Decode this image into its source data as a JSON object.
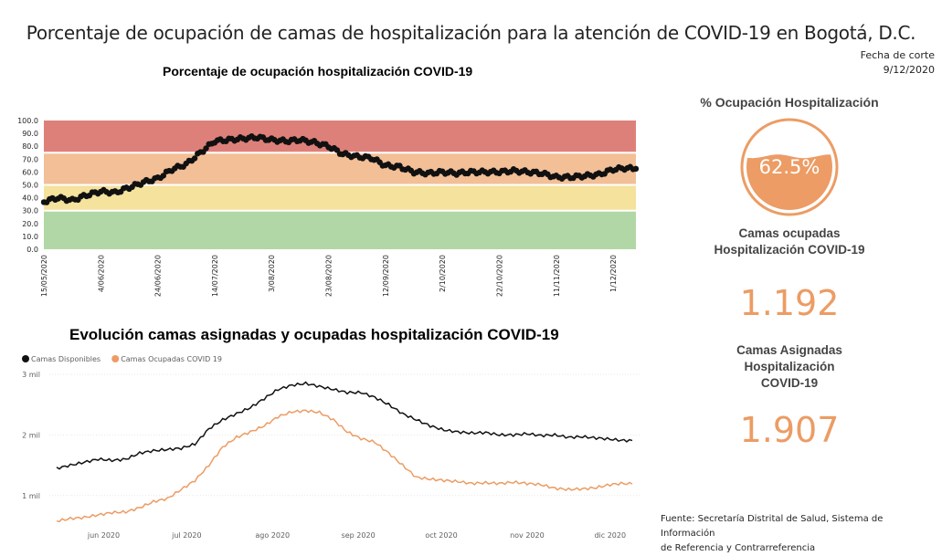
{
  "header": {
    "title": "Porcentaje de ocupación de camas de hospitalización para la atención de COVID-19 en Bogotá, D.C.",
    "cutoff_label": "Fecha de corte",
    "cutoff_date": "9/12/2020"
  },
  "kpis": {
    "occupancy_title": "% Ocupación Hospitalización",
    "occupancy_value": "62.5%",
    "occupied_label_1": "Camas ocupadas",
    "occupied_label_2": "Hospitalización COVID-19",
    "occupied_value": "1.192",
    "assigned_label_1": "Camas Asignadas",
    "assigned_label_2": "Hospitalización",
    "assigned_label_3": "COVID-19",
    "assigned_value": "1.907",
    "accent_color": "#ec9c64"
  },
  "source": {
    "line1": "Fuente: Secretaría Distrital de Salud, Sistema de Información",
    "line2": "de Referencia y Contrarreferencia"
  },
  "colors": {
    "band_red": "#de807a",
    "band_orange": "#f2bf97",
    "band_yellow": "#f4e29d",
    "band_green": "#b1d7a6",
    "available": "#111111",
    "occupied": "#ec9c64"
  },
  "chart_data": [
    {
      "type": "scatter",
      "title": "Porcentaje de ocupación hospitalización COVID-19",
      "ylim": [
        0,
        100
      ],
      "y_ticks": [
        "100.0",
        "90.0",
        "80.0",
        "70.0",
        "60.0",
        "50.0",
        "40.0",
        "30.0",
        "20.0",
        "10.0",
        "0.0"
      ],
      "x_ticks": [
        "15/05/2020",
        "4/06/2020",
        "24/06/2020",
        "14/07/2020",
        "3/08/2020",
        "23/08/2020",
        "12/09/2020",
        "2/10/2020",
        "22/10/2020",
        "11/11/2020",
        "1/12/2020"
      ],
      "x_start": "15/05/2020",
      "x_end": "9/12/2020",
      "bands": [
        {
          "from": 0,
          "to": 30,
          "color": "#b1d7a6"
        },
        {
          "from": 30,
          "to": 50,
          "color": "#f4e29d"
        },
        {
          "from": 50,
          "to": 75,
          "color": "#f2bf97"
        },
        {
          "from": 75,
          "to": 100,
          "color": "#de807a"
        }
      ],
      "series": [
        {
          "points": [
            [
              "15/05/2020",
              37
            ],
            [
              "20/05/2020",
              40
            ],
            [
              "25/05/2020",
              38
            ],
            [
              "30/05/2020",
              42
            ],
            [
              "4/06/2020",
              45
            ],
            [
              "9/06/2020",
              44
            ],
            [
              "14/06/2020",
              48
            ],
            [
              "19/06/2020",
              52
            ],
            [
              "24/06/2020",
              55
            ],
            [
              "29/06/2020",
              62
            ],
            [
              "4/07/2020",
              66
            ],
            [
              "9/07/2020",
              75
            ],
            [
              "14/07/2020",
              84
            ],
            [
              "19/07/2020",
              85
            ],
            [
              "24/07/2020",
              86
            ],
            [
              "29/07/2020",
              87
            ],
            [
              "3/08/2020",
              85
            ],
            [
              "8/08/2020",
              84
            ],
            [
              "13/08/2020",
              85
            ],
            [
              "18/08/2020",
              83
            ],
            [
              "23/08/2020",
              80
            ],
            [
              "28/08/2020",
              74
            ],
            [
              "2/09/2020",
              72
            ],
            [
              "7/09/2020",
              71
            ],
            [
              "12/09/2020",
              65
            ],
            [
              "17/09/2020",
              64
            ],
            [
              "22/09/2020",
              60
            ],
            [
              "27/09/2020",
              59
            ],
            [
              "2/10/2020",
              60
            ],
            [
              "7/10/2020",
              59
            ],
            [
              "12/10/2020",
              60
            ],
            [
              "17/10/2020",
              60
            ],
            [
              "22/10/2020",
              60
            ],
            [
              "27/10/2020",
              61
            ],
            [
              "1/11/2020",
              60
            ],
            [
              "6/11/2020",
              59
            ],
            [
              "11/11/2020",
              56
            ],
            [
              "16/11/2020",
              56
            ],
            [
              "21/11/2020",
              57
            ],
            [
              "26/11/2020",
              58
            ],
            [
              "1/12/2020",
              62
            ],
            [
              "5/12/2020",
              63
            ],
            [
              "9/12/2020",
              62.5
            ]
          ]
        }
      ]
    },
    {
      "type": "line",
      "title": "Evolución camas asignadas y ocupadas hospitalización COVID-19",
      "y_ticks": [
        "3 mil",
        "2 mil",
        "1 mil"
      ],
      "y_tick_values": [
        3000,
        2000,
        1000
      ],
      "ylim": [
        500,
        3000
      ],
      "x_ticks": [
        "jun 2020",
        "jul 2020",
        "ago 2020",
        "sep 2020",
        "oct 2020",
        "nov 2020",
        "dic 2020"
      ],
      "x_start": "15/05/2020",
      "x_end": "9/12/2020",
      "legend_position": "top-left",
      "series": [
        {
          "name": "Camas Disponibles",
          "color": "#111111",
          "points": [
            [
              "15/05/2020",
              1450
            ],
            [
              "20/05/2020",
              1500
            ],
            [
              "25/05/2020",
              1550
            ],
            [
              "30/05/2020",
              1600
            ],
            [
              "4/06/2020",
              1580
            ],
            [
              "9/06/2020",
              1600
            ],
            [
              "14/06/2020",
              1700
            ],
            [
              "19/06/2020",
              1740
            ],
            [
              "24/06/2020",
              1760
            ],
            [
              "29/06/2020",
              1780
            ],
            [
              "4/07/2020",
              1850
            ],
            [
              "9/07/2020",
              2100
            ],
            [
              "14/07/2020",
              2250
            ],
            [
              "19/07/2020",
              2350
            ],
            [
              "24/07/2020",
              2450
            ],
            [
              "29/07/2020",
              2600
            ],
            [
              "3/08/2020",
              2750
            ],
            [
              "8/08/2020",
              2820
            ],
            [
              "13/08/2020",
              2850
            ],
            [
              "18/08/2020",
              2800
            ],
            [
              "23/08/2020",
              2750
            ],
            [
              "28/08/2020",
              2700
            ],
            [
              "2/09/2020",
              2700
            ],
            [
              "7/09/2020",
              2620
            ],
            [
              "12/09/2020",
              2500
            ],
            [
              "17/09/2020",
              2350
            ],
            [
              "22/09/2020",
              2250
            ],
            [
              "27/09/2020",
              2150
            ],
            [
              "2/10/2020",
              2080
            ],
            [
              "7/10/2020",
              2050
            ],
            [
              "12/10/2020",
              2030
            ],
            [
              "17/10/2020",
              2040
            ],
            [
              "22/10/2020",
              2000
            ],
            [
              "27/10/2020",
              2000
            ],
            [
              "1/11/2020",
              2020
            ],
            [
              "6/11/2020",
              1990
            ],
            [
              "11/11/2020",
              2000
            ],
            [
              "16/11/2020",
              1960
            ],
            [
              "21/11/2020",
              1970
            ],
            [
              "26/11/2020",
              1950
            ],
            [
              "1/12/2020",
              1930
            ],
            [
              "5/12/2020",
              1910
            ],
            [
              "9/12/2020",
              1907
            ]
          ]
        },
        {
          "name": "Camas Ocupadas COVID 19",
          "color": "#ec9c64",
          "points": [
            [
              "15/05/2020",
              580
            ],
            [
              "20/05/2020",
              620
            ],
            [
              "25/05/2020",
              640
            ],
            [
              "30/05/2020",
              680
            ],
            [
              "4/06/2020",
              720
            ],
            [
              "9/06/2020",
              730
            ],
            [
              "14/06/2020",
              800
            ],
            [
              "19/06/2020",
              900
            ],
            [
              "24/06/2020",
              950
            ],
            [
              "29/06/2020",
              1100
            ],
            [
              "4/07/2020",
              1250
            ],
            [
              "9/07/2020",
              1500
            ],
            [
              "14/07/2020",
              1800
            ],
            [
              "19/07/2020",
              1960
            ],
            [
              "24/07/2020",
              2050
            ],
            [
              "29/07/2020",
              2150
            ],
            [
              "3/08/2020",
              2300
            ],
            [
              "8/08/2020",
              2380
            ],
            [
              "13/08/2020",
              2400
            ],
            [
              "18/08/2020",
              2370
            ],
            [
              "23/08/2020",
              2250
            ],
            [
              "28/08/2020",
              2050
            ],
            [
              "2/09/2020",
              1940
            ],
            [
              "7/09/2020",
              1880
            ],
            [
              "12/09/2020",
              1700
            ],
            [
              "17/09/2020",
              1500
            ],
            [
              "22/09/2020",
              1300
            ],
            [
              "27/09/2020",
              1270
            ],
            [
              "2/10/2020",
              1250
            ],
            [
              "7/10/2020",
              1230
            ],
            [
              "12/10/2020",
              1200
            ],
            [
              "17/10/2020",
              1210
            ],
            [
              "22/10/2020",
              1200
            ],
            [
              "27/10/2020",
              1220
            ],
            [
              "1/11/2020",
              1200
            ],
            [
              "6/11/2020",
              1180
            ],
            [
              "11/11/2020",
              1120
            ],
            [
              "16/11/2020",
              1100
            ],
            [
              "21/11/2020",
              1110
            ],
            [
              "26/11/2020",
              1130
            ],
            [
              "1/12/2020",
              1180
            ],
            [
              "5/12/2020",
              1200
            ],
            [
              "9/12/2020",
              1192
            ]
          ]
        }
      ]
    }
  ]
}
